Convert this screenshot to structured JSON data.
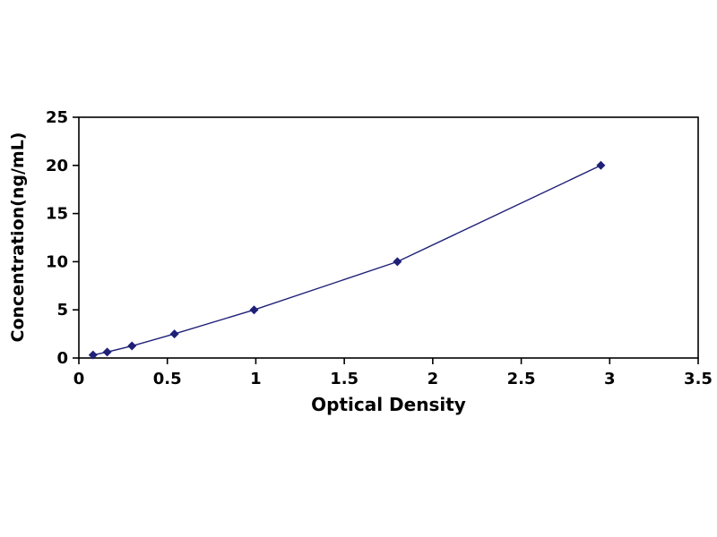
{
  "chart_data": {
    "type": "line",
    "title": "",
    "xlabel": "Optical Density",
    "ylabel": "Concentration(ng/mL)",
    "x": [
      0.08,
      0.16,
      0.3,
      0.54,
      0.99,
      1.8,
      2.95
    ],
    "y": [
      0.31,
      0.62,
      1.25,
      2.5,
      5,
      10,
      20
    ],
    "xlim": [
      0,
      3.5
    ],
    "ylim": [
      0,
      25
    ],
    "xticks": [
      0,
      0.5,
      1,
      1.5,
      2,
      2.5,
      3,
      3.5
    ],
    "yticks": [
      0,
      5,
      10,
      15,
      20,
      25
    ],
    "grid": false,
    "legend": null,
    "marker": "diamond",
    "line_color": "#1f2077",
    "marker_color": "#1f2077",
    "axis_color": "#000000",
    "background_color": "#ffffff"
  }
}
